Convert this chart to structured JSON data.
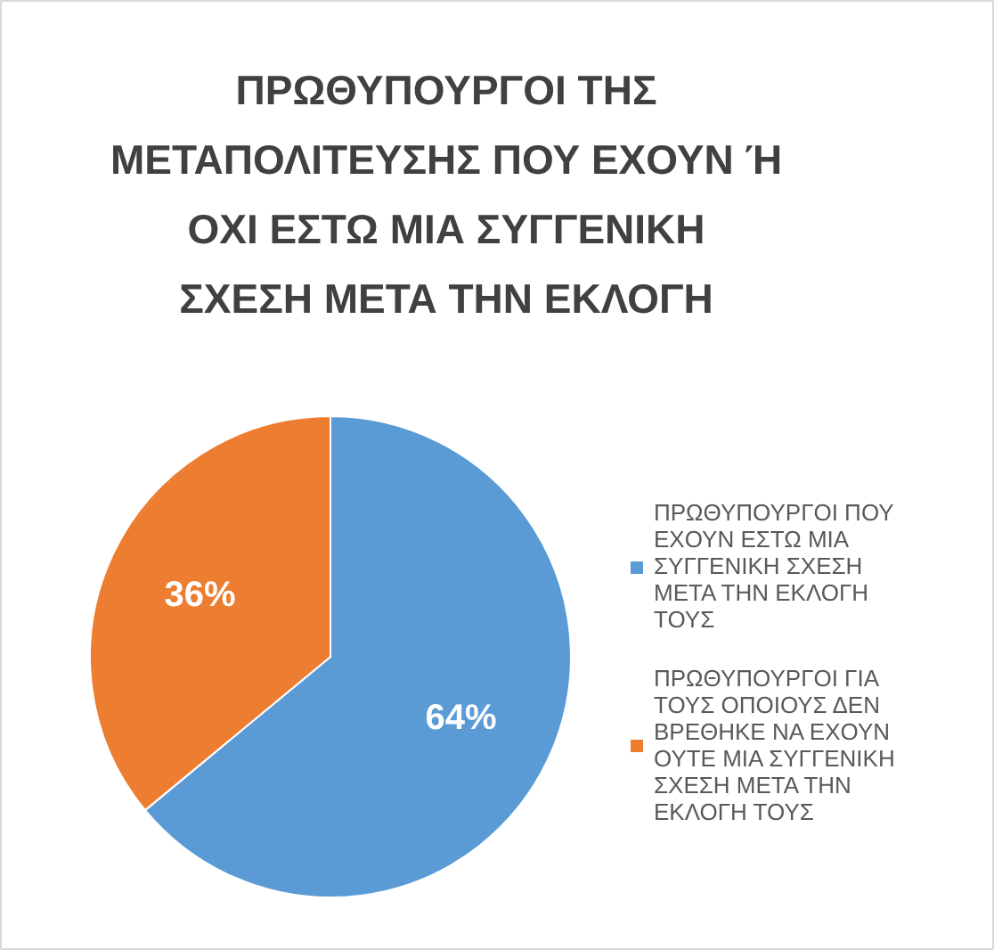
{
  "chart_data": {
    "type": "pie",
    "title": "ΠΡΩΘΥΠΟΥΡΓΟΙ ΤΗΣ ΜΕΤΑΠΟΛΙΤΕΥΣΗΣ ΠΟΥ ΕΧΟΥΝ Ή ΟΧΙ ΕΣΤΩ ΜΙΑ ΣΥΓΓΕΝΙΚΗ ΣΧΕΣΗ ΜΕΤΑ ΤΗΝ ΕΚΛΟΓΗ",
    "categories": [
      "ΠΡΩΘΥΠΟΥΡΓΟΙ ΠΟΥ ΕΧΟΥΝ ΕΣΤΩ ΜΙΑ ΣΥΓΓΕΝΙΚΗ ΣΧΕΣΗ ΜΕΤΑ ΤΗΝ ΕΚΛΟΓΗ ΤΟΥΣ",
      "ΠΡΩΘΥΠΟΥΡΓΟΙ ΓΙΑ ΤΟΥΣ ΟΠΟΙΟΥΣ ΔΕΝ ΒΡΕΘΗΚΕ ΝΑ ΕΧΟΥΝ ΟΥΤΕ ΜΙΑ ΣΥΓΓΕΝΙΚΗ ΣΧΕΣΗ ΜΕΤΑ ΤΗΝ ΕΚΛΟΓΗ ΤΟΥΣ"
    ],
    "values": [
      64,
      36
    ],
    "colors": [
      "#5b9bd5",
      "#ed7d31"
    ],
    "value_labels": [
      "64%",
      "36%"
    ],
    "legend": "right"
  }
}
